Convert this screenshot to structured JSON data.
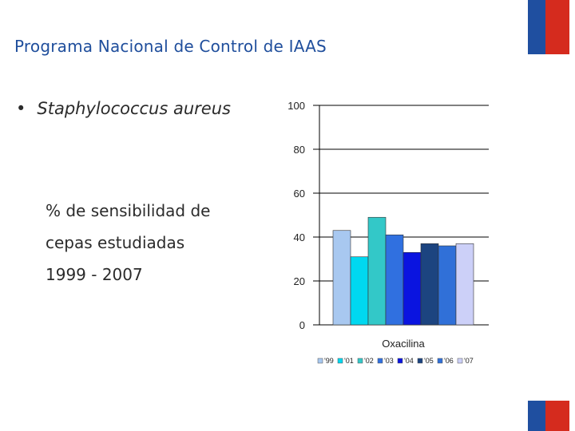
{
  "slide": {
    "title": "Programa Nacional de Control de IAAS",
    "bullet": "Staphylococcus aureus",
    "description_lines": [
      "% de sensibilidad de",
      "cepas estudiadas",
      "1999 - 2007"
    ]
  },
  "colors": {
    "title": "#1f4e9c",
    "flag_blue": "#1f4fa0",
    "flag_red": "#d52b1e"
  },
  "chart_data": {
    "type": "bar",
    "title": "",
    "xlabel": "Oxacilina",
    "ylabel": "",
    "ylim": [
      0,
      100
    ],
    "yticks": [
      "0",
      "20",
      "40",
      "60",
      "80",
      "100"
    ],
    "grid": true,
    "legend_position": "bottom",
    "series": [
      {
        "name": "'99",
        "value": 43,
        "color": "#a8c8f0"
      },
      {
        "name": "'01",
        "value": 31,
        "color": "#00d8f0"
      },
      {
        "name": "'02",
        "value": 49,
        "color": "#33c8c8"
      },
      {
        "name": "'03",
        "value": 41,
        "color": "#3070e0"
      },
      {
        "name": "'04",
        "value": 33,
        "color": "#0a14e0"
      },
      {
        "name": "'05",
        "value": 37,
        "color": "#1c4480"
      },
      {
        "name": "'06",
        "value": 36,
        "color": "#3070d8"
      },
      {
        "name": "'07",
        "value": 37,
        "color": "#ccd0f8"
      }
    ]
  }
}
